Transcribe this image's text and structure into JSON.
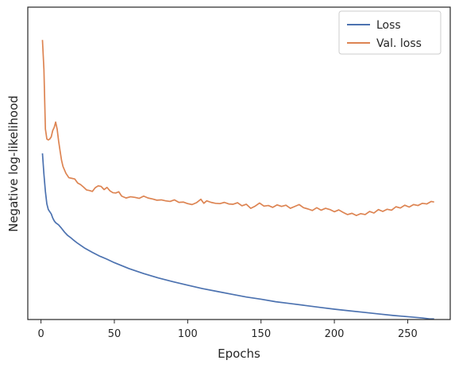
{
  "chart_data": {
    "type": "line",
    "title": "",
    "xlabel": "Epochs",
    "ylabel": "Negative log-likelihood",
    "xlim": [
      -9,
      279
    ],
    "ylim": [
      0,
      100
    ],
    "xticks": [
      0,
      50,
      100,
      150,
      200,
      250
    ],
    "xtick_labels": [
      "0",
      "50",
      "100",
      "150",
      "200",
      "250"
    ],
    "yticks": [],
    "grid": false,
    "legend_position": "top-right",
    "series": [
      {
        "name": "Loss",
        "color": "#4c72b0",
        "x": [
          1,
          2,
          3,
          4,
          5,
          6,
          7,
          8,
          9,
          10,
          12,
          14,
          16,
          18,
          20,
          22,
          25,
          30,
          35,
          40,
          45,
          50,
          60,
          70,
          80,
          90,
          100,
          110,
          120,
          130,
          140,
          150,
          160,
          170,
          180,
          190,
          200,
          210,
          220,
          230,
          240,
          250,
          260,
          265,
          268
        ],
        "y": [
          53.2,
          46.5,
          41.0,
          37.0,
          35.2,
          34.5,
          33.8,
          32.5,
          31.6,
          31.0,
          30.3,
          29.2,
          28.0,
          27.0,
          26.3,
          25.5,
          24.4,
          22.8,
          21.5,
          20.3,
          19.3,
          18.2,
          16.3,
          14.7,
          13.3,
          12.1,
          11.0,
          9.9,
          9.0,
          8.1,
          7.2,
          6.5,
          5.7,
          5.1,
          4.5,
          3.9,
          3.3,
          2.8,
          2.3,
          1.8,
          1.3,
          0.9,
          0.5,
          0.2,
          0.2
        ]
      },
      {
        "name": "Val. loss",
        "color": "#dd8452",
        "x": [
          1,
          2,
          3,
          4,
          5,
          6,
          7,
          8,
          9,
          10,
          11,
          12,
          13,
          14,
          15,
          17,
          19,
          21,
          23,
          25,
          27,
          29,
          31,
          33,
          35,
          37,
          39,
          41,
          43,
          45,
          47,
          49,
          51,
          53,
          55,
          58,
          61,
          64,
          67,
          70,
          73,
          76,
          79,
          82,
          85,
          88,
          91,
          94,
          97,
          100,
          103,
          106,
          109,
          111,
          113,
          116,
          119,
          122,
          125,
          128,
          131,
          134,
          137,
          140,
          143,
          146,
          149,
          152,
          155,
          158,
          161,
          164,
          167,
          170,
          173,
          176,
          179,
          182,
          185,
          188,
          191,
          194,
          197,
          200,
          203,
          206,
          209,
          212,
          215,
          218,
          221,
          224,
          227,
          230,
          233,
          236,
          239,
          242,
          245,
          248,
          251,
          254,
          257,
          260,
          263,
          266,
          268
        ],
        "y": [
          89.5,
          80.0,
          61.0,
          57.8,
          57.5,
          57.8,
          58.5,
          60.5,
          61.5,
          63.2,
          61.0,
          57.2,
          54.0,
          51.0,
          49.0,
          46.8,
          45.4,
          45.2,
          45.0,
          43.7,
          43.2,
          42.4,
          41.5,
          41.3,
          41.0,
          42.2,
          42.8,
          42.6,
          41.6,
          42.3,
          41.2,
          40.6,
          40.5,
          40.9,
          39.5,
          38.9,
          39.3,
          39.1,
          38.8,
          39.5,
          38.9,
          38.6,
          38.2,
          38.3,
          38.0,
          37.8,
          38.3,
          37.5,
          37.6,
          37.1,
          36.8,
          37.4,
          38.5,
          37.2,
          38.0,
          37.5,
          37.2,
          37.1,
          37.5,
          37.0,
          36.9,
          37.4,
          36.4,
          36.9,
          35.6,
          36.3,
          37.3,
          36.3,
          36.5,
          35.9,
          36.7,
          36.2,
          36.6,
          35.6,
          36.2,
          36.8,
          35.8,
          35.4,
          34.9,
          35.8,
          35.0,
          35.6,
          35.2,
          34.5,
          35.1,
          34.3,
          33.6,
          34.0,
          33.3,
          33.9,
          33.6,
          34.6,
          34.1,
          35.2,
          34.6,
          35.3,
          35.0,
          36.1,
          35.7,
          36.6,
          36.0,
          36.8,
          36.5,
          37.2,
          37.0,
          37.8,
          37.6
        ]
      }
    ]
  }
}
